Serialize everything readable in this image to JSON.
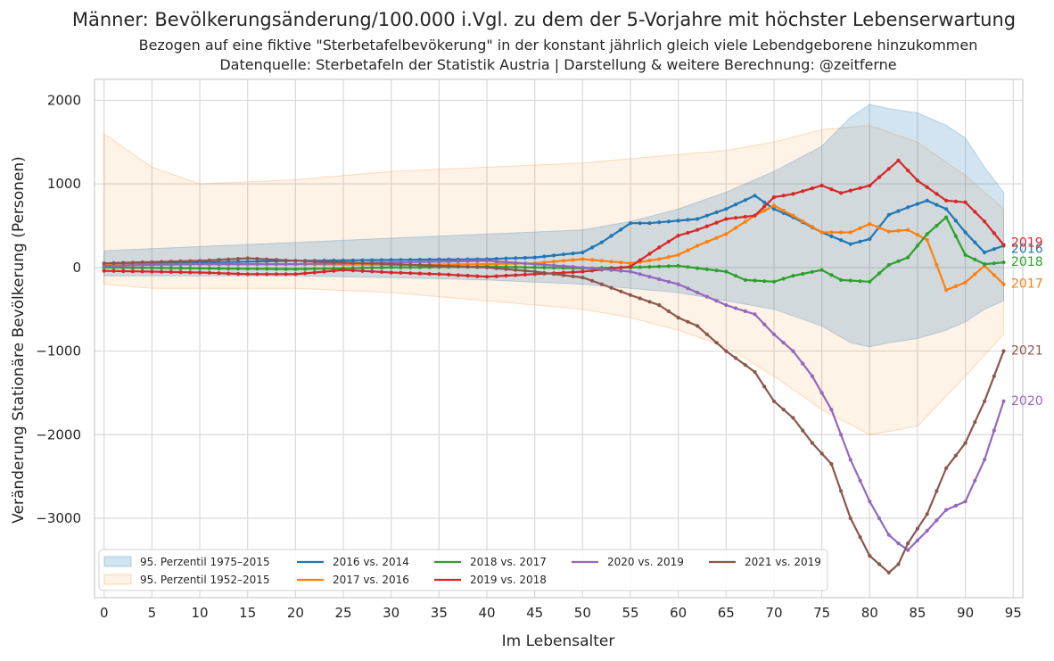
{
  "chart_data": {
    "type": "line",
    "title": "Männer: Bevölkerungsänderung/100.000 i.Vgl. zu dem der 5-Vorjahre mit höchster Lebenserwartung",
    "subtitle_lines": [
      "Bezogen auf eine fiktive \"Sterbetafelbevökerung\" in der konstant jährlich gleich viele Lebendgeborene hinzukommen",
      "Datenquelle: Sterbetafeln der Statistik Austria | Darstellung & weitere Berechnung: @zeitferne"
    ],
    "xlabel": "Im Lebensalter",
    "ylabel": "Veränderung Stationäre Bevölkerung (Personen)",
    "xlim": [
      -1,
      96
    ],
    "ylim": [
      -3950,
      2250
    ],
    "x_ticks": [
      0,
      5,
      10,
      15,
      20,
      25,
      30,
      35,
      40,
      45,
      50,
      55,
      60,
      65,
      70,
      75,
      80,
      85,
      90,
      95
    ],
    "y_ticks": [
      2000,
      1000,
      0,
      -1000,
      -2000,
      -3000
    ],
    "y_tick_labels": [
      "2000",
      "1000",
      "0",
      "−1000",
      "−2000",
      "−3000"
    ],
    "grid": true,
    "legend_position": "lower-left",
    "bands": [
      {
        "name": "95. Perzentil 1975–2015",
        "color": "#1f77b4",
        "x": [
          0,
          10,
          20,
          30,
          40,
          50,
          55,
          60,
          65,
          70,
          75,
          78,
          80,
          82,
          85,
          88,
          90,
          92,
          94
        ],
        "upper": [
          200,
          250,
          300,
          350,
          400,
          450,
          550,
          700,
          900,
          1150,
          1450,
          1800,
          1950,
          1900,
          1850,
          1700,
          1550,
          1200,
          900
        ],
        "lower": [
          -100,
          -100,
          -100,
          -120,
          -150,
          -200,
          -250,
          -300,
          -400,
          -500,
          -700,
          -900,
          -950,
          -900,
          -850,
          -750,
          -650,
          -500,
          -400
        ]
      },
      {
        "name": "95. Perzentil 1952–2015",
        "color": "#ff7f0e",
        "x": [
          0,
          5,
          10,
          20,
          30,
          40,
          50,
          55,
          60,
          65,
          70,
          75,
          80,
          85,
          90,
          94
        ],
        "upper": [
          1600,
          1200,
          1000,
          1050,
          1150,
          1200,
          1250,
          1300,
          1350,
          1400,
          1500,
          1650,
          1700,
          1500,
          1100,
          700
        ],
        "lower": [
          -200,
          -250,
          -250,
          -250,
          -300,
          -400,
          -500,
          -600,
          -750,
          -950,
          -1300,
          -1700,
          -2000,
          -1900,
          -1300,
          -800
        ]
      }
    ],
    "series": [
      {
        "name": "2016 vs. 2014",
        "color": "#1f77b4",
        "end_label": "2016",
        "x": [
          0,
          10,
          20,
          30,
          40,
          45,
          50,
          52,
          55,
          57,
          60,
          62,
          65,
          68,
          70,
          72,
          75,
          78,
          80,
          82,
          84,
          86,
          88,
          90,
          92,
          94
        ],
        "y": [
          50,
          60,
          80,
          90,
          100,
          120,
          180,
          300,
          530,
          530,
          560,
          580,
          700,
          860,
          700,
          600,
          420,
          280,
          340,
          630,
          720,
          800,
          700,
          420,
          180,
          260
        ]
      },
      {
        "name": "2017 vs. 2016",
        "color": "#ff7f0e",
        "end_label": "2017",
        "x": [
          0,
          10,
          20,
          30,
          40,
          45,
          50,
          55,
          58,
          60,
          62,
          65,
          68,
          70,
          72,
          75,
          78,
          80,
          82,
          84,
          86,
          88,
          90,
          92,
          94
        ],
        "y": [
          30,
          40,
          40,
          30,
          40,
          50,
          100,
          50,
          100,
          150,
          260,
          400,
          620,
          740,
          620,
          420,
          420,
          520,
          430,
          450,
          330,
          -270,
          -180,
          20,
          -200
        ]
      },
      {
        "name": "2018 vs. 2017",
        "color": "#2ca02c",
        "end_label": "2018",
        "x": [
          0,
          10,
          20,
          30,
          40,
          50,
          55,
          60,
          65,
          67,
          70,
          72,
          75,
          77,
          80,
          82,
          84,
          86,
          88,
          90,
          92,
          94
        ],
        "y": [
          0,
          -10,
          -20,
          0,
          10,
          -10,
          0,
          20,
          -50,
          -150,
          -170,
          -100,
          -30,
          -150,
          -170,
          30,
          120,
          400,
          600,
          150,
          40,
          60
        ]
      },
      {
        "name": "2019 vs. 2018",
        "color": "#d62728",
        "end_label": "2019",
        "x": [
          0,
          10,
          15,
          20,
          25,
          30,
          35,
          40,
          45,
          50,
          55,
          58,
          60,
          62,
          65,
          68,
          70,
          72,
          75,
          77,
          80,
          83,
          85,
          88,
          90,
          92,
          94
        ],
        "y": [
          -40,
          -60,
          -80,
          -80,
          -30,
          -60,
          -80,
          -110,
          -80,
          -50,
          10,
          240,
          380,
          450,
          580,
          620,
          840,
          880,
          980,
          890,
          980,
          1280,
          1040,
          800,
          780,
          550,
          270
        ]
      },
      {
        "name": "2020 vs. 2019",
        "color": "#9467bd",
        "end_label": "2020",
        "x": [
          0,
          10,
          20,
          30,
          40,
          45,
          50,
          55,
          60,
          65,
          68,
          70,
          72,
          74,
          76,
          78,
          80,
          82,
          83,
          84,
          86,
          88,
          90,
          92,
          94
        ],
        "y": [
          20,
          40,
          40,
          60,
          80,
          40,
          0,
          -50,
          -200,
          -450,
          -560,
          -800,
          -1000,
          -1300,
          -1700,
          -2300,
          -2800,
          -3200,
          -3300,
          -3380,
          -3150,
          -2900,
          -2800,
          -2300,
          -1600
        ]
      },
      {
        "name": "2021 vs. 2019",
        "color": "#8c564b",
        "end_label": "2021",
        "x": [
          0,
          10,
          15,
          20,
          30,
          40,
          45,
          50,
          52,
          55,
          58,
          60,
          62,
          65,
          68,
          70,
          72,
          74,
          76,
          78,
          80,
          82,
          83,
          84,
          86,
          88,
          90,
          92,
          94
        ],
        "y": [
          50,
          80,
          110,
          80,
          40,
          0,
          -50,
          -120,
          -200,
          -330,
          -450,
          -600,
          -700,
          -1000,
          -1250,
          -1600,
          -1800,
          -2100,
          -2350,
          -3000,
          -3450,
          -3650,
          -3550,
          -3300,
          -2950,
          -2400,
          -2100,
          -1600,
          -1000
        ]
      }
    ]
  }
}
